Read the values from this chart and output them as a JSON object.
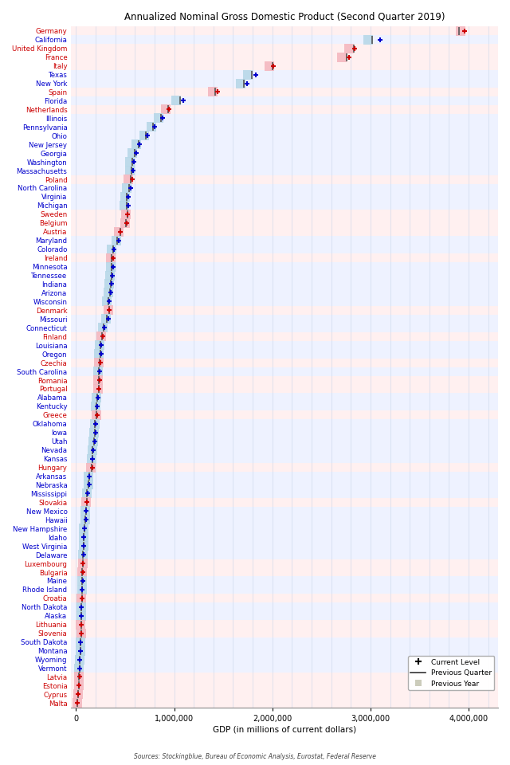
{
  "title": "Annualized Nominal Gross Domestic Product (Second Quarter 2019)",
  "xlabel": "GDP (in millions of current dollars)",
  "source": "Sources: Stockingblue, Bureau of Economic Analysis, Eurostat, Federal Reserve",
  "xlim": [
    -50000,
    4300000
  ],
  "xticks": [
    0,
    1000000,
    2000000,
    3000000,
    4000000
  ],
  "xticklabels": [
    "0",
    "1,000,000",
    "2,000,000",
    "3,000,000",
    "4,000,000"
  ],
  "entities": [
    {
      "name": "Germany",
      "type": "eu",
      "current": 3960000,
      "prev_quarter": 3900000,
      "prev_year": 3920000
    },
    {
      "name": "California",
      "type": "us",
      "current": 3100000,
      "prev_quarter": 3020000,
      "prev_year": 2980000
    },
    {
      "name": "United Kingdom",
      "type": "eu",
      "current": 2840000,
      "prev_quarter": 2830000,
      "prev_year": 2780000
    },
    {
      "name": "France",
      "type": "eu",
      "current": 2780000,
      "prev_quarter": 2760000,
      "prev_year": 2710000
    },
    {
      "name": "Italy",
      "type": "eu",
      "current": 2010000,
      "prev_quarter": 2000000,
      "prev_year": 1970000
    },
    {
      "name": "Texas",
      "type": "us",
      "current": 1830000,
      "prev_quarter": 1790000,
      "prev_year": 1750000
    },
    {
      "name": "New York",
      "type": "us",
      "current": 1740000,
      "prev_quarter": 1710000,
      "prev_year": 1680000
    },
    {
      "name": "Spain",
      "type": "eu",
      "current": 1440000,
      "prev_quarter": 1420000,
      "prev_year": 1390000
    },
    {
      "name": "Florida",
      "type": "us",
      "current": 1090000,
      "prev_quarter": 1060000,
      "prev_year": 1020000
    },
    {
      "name": "Netherlands",
      "type": "eu",
      "current": 950000,
      "prev_quarter": 940000,
      "prev_year": 915000
    },
    {
      "name": "Illinois",
      "type": "us",
      "current": 880000,
      "prev_quarter": 865000,
      "prev_year": 845000
    },
    {
      "name": "Pennsylvania",
      "type": "us",
      "current": 800000,
      "prev_quarter": 785000,
      "prev_year": 765000
    },
    {
      "name": "Ohio",
      "type": "us",
      "current": 730000,
      "prev_quarter": 715000,
      "prev_year": 695000
    },
    {
      "name": "New Jersey",
      "type": "us",
      "current": 650000,
      "prev_quarter": 635000,
      "prev_year": 615000
    },
    {
      "name": "Georgia",
      "type": "us",
      "current": 610000,
      "prev_quarter": 595000,
      "prev_year": 570000
    },
    {
      "name": "Washington",
      "type": "us",
      "current": 590000,
      "prev_quarter": 575000,
      "prev_year": 550000
    },
    {
      "name": "Massachusetts",
      "type": "us",
      "current": 580000,
      "prev_quarter": 565000,
      "prev_year": 545000
    },
    {
      "name": "Poland",
      "type": "eu",
      "current": 570000,
      "prev_quarter": 558000,
      "prev_year": 535000
    },
    {
      "name": "North Carolina",
      "type": "us",
      "current": 555000,
      "prev_quarter": 540000,
      "prev_year": 515000
    },
    {
      "name": "Virginia",
      "type": "us",
      "current": 535000,
      "prev_quarter": 518000,
      "prev_year": 502000
    },
    {
      "name": "Michigan",
      "type": "us",
      "current": 530000,
      "prev_quarter": 514000,
      "prev_year": 494000
    },
    {
      "name": "Sweden",
      "type": "eu",
      "current": 525000,
      "prev_quarter": 522000,
      "prev_year": 512000
    },
    {
      "name": "Belgium",
      "type": "eu",
      "current": 520000,
      "prev_quarter": 512000,
      "prev_year": 502000
    },
    {
      "name": "Austria",
      "type": "eu",
      "current": 455000,
      "prev_quarter": 450000,
      "prev_year": 438000
    },
    {
      "name": "Maryland",
      "type": "us",
      "current": 432000,
      "prev_quarter": 422000,
      "prev_year": 412000
    },
    {
      "name": "Colorado",
      "type": "us",
      "current": 390000,
      "prev_quarter": 379000,
      "prev_year": 362000
    },
    {
      "name": "Ireland",
      "type": "eu",
      "current": 382000,
      "prev_quarter": 365000,
      "prev_year": 352000
    },
    {
      "name": "Minnesota",
      "type": "us",
      "current": 381000,
      "prev_quarter": 366000,
      "prev_year": 352000
    },
    {
      "name": "Tennessee",
      "type": "us",
      "current": 372000,
      "prev_quarter": 360000,
      "prev_year": 347000
    },
    {
      "name": "Indiana",
      "type": "us",
      "current": 362000,
      "prev_quarter": 351000,
      "prev_year": 337000
    },
    {
      "name": "Arizona",
      "type": "us",
      "current": 356000,
      "prev_quarter": 346000,
      "prev_year": 332000
    },
    {
      "name": "Wisconsin",
      "type": "us",
      "current": 341000,
      "prev_quarter": 331000,
      "prev_year": 317000
    },
    {
      "name": "Denmark",
      "type": "eu",
      "current": 340000,
      "prev_quarter": 338000,
      "prev_year": 330000
    },
    {
      "name": "Missouri",
      "type": "us",
      "current": 326000,
      "prev_quarter": 317000,
      "prev_year": 307000
    },
    {
      "name": "Connecticut",
      "type": "us",
      "current": 286000,
      "prev_quarter": 279000,
      "prev_year": 272000
    },
    {
      "name": "Finland",
      "type": "eu",
      "current": 272000,
      "prev_quarter": 267000,
      "prev_year": 260000
    },
    {
      "name": "Louisiana",
      "type": "us",
      "current": 257000,
      "prev_quarter": 249000,
      "prev_year": 242000
    },
    {
      "name": "Oregon",
      "type": "us",
      "current": 256000,
      "prev_quarter": 245000,
      "prev_year": 236000
    },
    {
      "name": "Czechia",
      "type": "eu",
      "current": 246000,
      "prev_quarter": 241000,
      "prev_year": 234000
    },
    {
      "name": "South Carolina",
      "type": "us",
      "current": 241000,
      "prev_quarter": 231000,
      "prev_year": 222000
    },
    {
      "name": "Romania",
      "type": "eu",
      "current": 240000,
      "prev_quarter": 236000,
      "prev_year": 221000
    },
    {
      "name": "Portugal",
      "type": "eu",
      "current": 236000,
      "prev_quarter": 233000,
      "prev_year": 226000
    },
    {
      "name": "Alabama",
      "type": "us",
      "current": 226000,
      "prev_quarter": 219000,
      "prev_year": 211000
    },
    {
      "name": "Kentucky",
      "type": "us",
      "current": 216000,
      "prev_quarter": 210000,
      "prev_year": 201000
    },
    {
      "name": "Greece",
      "type": "eu",
      "current": 212000,
      "prev_quarter": 209000,
      "prev_year": 206000
    },
    {
      "name": "Oklahoma",
      "type": "us",
      "current": 201000,
      "prev_quarter": 194000,
      "prev_year": 191000
    },
    {
      "name": "Iowa",
      "type": "us",
      "current": 196000,
      "prev_quarter": 190000,
      "prev_year": 184000
    },
    {
      "name": "Utah",
      "type": "us",
      "current": 191000,
      "prev_quarter": 184000,
      "prev_year": 176000
    },
    {
      "name": "Nevada",
      "type": "us",
      "current": 176000,
      "prev_quarter": 171000,
      "prev_year": 164000
    },
    {
      "name": "Kansas",
      "type": "us",
      "current": 171000,
      "prev_quarter": 166000,
      "prev_year": 161000
    },
    {
      "name": "Hungary",
      "type": "eu",
      "current": 164000,
      "prev_quarter": 159000,
      "prev_year": 149000
    },
    {
      "name": "Arkansas",
      "type": "us",
      "current": 136000,
      "prev_quarter": 132000,
      "prev_year": 127000
    },
    {
      "name": "Nebraska",
      "type": "us",
      "current": 131000,
      "prev_quarter": 128000,
      "prev_year": 123000
    },
    {
      "name": "Mississippi",
      "type": "us",
      "current": 116000,
      "prev_quarter": 114000,
      "prev_year": 110000
    },
    {
      "name": "Slovakia",
      "type": "eu",
      "current": 111000,
      "prev_quarter": 108000,
      "prev_year": 101000
    },
    {
      "name": "New Mexico",
      "type": "us",
      "current": 106000,
      "prev_quarter": 102000,
      "prev_year": 97000
    },
    {
      "name": "Hawaii",
      "type": "us",
      "current": 101000,
      "prev_quarter": 98000,
      "prev_year": 94000
    },
    {
      "name": "New Hampshire",
      "type": "us",
      "current": 86000,
      "prev_quarter": 83000,
      "prev_year": 80000
    },
    {
      "name": "Idaho",
      "type": "us",
      "current": 81000,
      "prev_quarter": 78000,
      "prev_year": 74000
    },
    {
      "name": "West Virginia",
      "type": "us",
      "current": 77000,
      "prev_quarter": 75000,
      "prev_year": 74000
    },
    {
      "name": "Delaware",
      "type": "us",
      "current": 74000,
      "prev_quarter": 72000,
      "prev_year": 69000
    },
    {
      "name": "Luxembourg",
      "type": "eu",
      "current": 71000,
      "prev_quarter": 70000,
      "prev_year": 68000
    },
    {
      "name": "Bulgaria",
      "type": "eu",
      "current": 67000,
      "prev_quarter": 65000,
      "prev_year": 61000
    },
    {
      "name": "Maine",
      "type": "us",
      "current": 66000,
      "prev_quarter": 64000,
      "prev_year": 62000
    },
    {
      "name": "Rhode Island",
      "type": "us",
      "current": 61000,
      "prev_quarter": 60000,
      "prev_year": 58000
    },
    {
      "name": "Croatia",
      "type": "eu",
      "current": 59000,
      "prev_quarter": 58000,
      "prev_year": 56000
    },
    {
      "name": "North Dakota",
      "type": "us",
      "current": 56000,
      "prev_quarter": 55000,
      "prev_year": 53000
    },
    {
      "name": "Alaska",
      "type": "us",
      "current": 52000,
      "prev_quarter": 52000,
      "prev_year": 53000
    },
    {
      "name": "Lithuania",
      "type": "eu",
      "current": 54000,
      "prev_quarter": 52000,
      "prev_year": 49000
    },
    {
      "name": "Slovenia",
      "type": "eu",
      "current": 55000,
      "prev_quarter": 54000,
      "prev_year": 52000
    },
    {
      "name": "South Dakota",
      "type": "us",
      "current": 49000,
      "prev_quarter": 48000,
      "prev_year": 46000
    },
    {
      "name": "Montana",
      "type": "us",
      "current": 47000,
      "prev_quarter": 46000,
      "prev_year": 44000
    },
    {
      "name": "Wyoming",
      "type": "us",
      "current": 41000,
      "prev_quarter": 41000,
      "prev_year": 40000
    },
    {
      "name": "Vermont",
      "type": "us",
      "current": 35000,
      "prev_quarter": 34000,
      "prev_year": 33000
    },
    {
      "name": "Latvia",
      "type": "eu",
      "current": 34000,
      "prev_quarter": 33000,
      "prev_year": 31000
    },
    {
      "name": "Estonia",
      "type": "eu",
      "current": 31000,
      "prev_quarter": 30000,
      "prev_year": 29000
    },
    {
      "name": "Cyprus",
      "type": "eu",
      "current": 24000,
      "prev_quarter": 23000,
      "prev_year": 22000
    },
    {
      "name": "Malta",
      "type": "eu",
      "current": 15000,
      "prev_quarter": 14500,
      "prev_year": 14000
    }
  ],
  "eu_text_color": "#cc0000",
  "us_text_color": "#0000cc",
  "current_eu_color": "#cc0000",
  "current_us_color": "#0000cc",
  "prev_quarter_color": "#333333",
  "prev_year_eu_color": "#f4b8c0",
  "prev_year_us_color": "#b8d8e8",
  "bg_eu_color": "#fff0f0",
  "bg_us_color": "#eef2ff",
  "grid_color": "#c8d4e8"
}
